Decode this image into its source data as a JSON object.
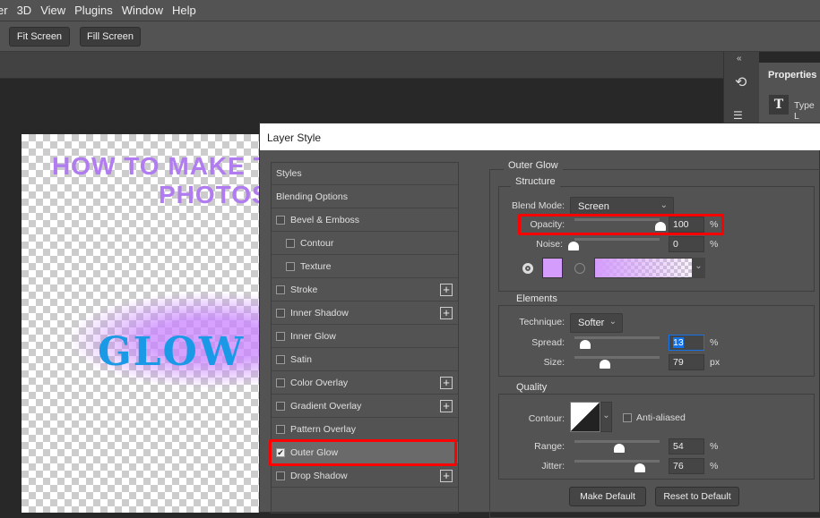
{
  "menu": [
    "er",
    "3D",
    "View",
    "Plugins",
    "Window",
    "Help"
  ],
  "toolbar": {
    "fit_screen": "Fit Screen",
    "fill_screen": "Fill Screen"
  },
  "properties": {
    "title": "Properties",
    "type_layer": "Type L"
  },
  "canvas": {
    "line1": "HOW TO MAKE T",
    "line2": "PHOTOS",
    "glow_text": "GLOW T"
  },
  "dialog": {
    "title": "Layer Style",
    "styles": [
      {
        "label": "Styles",
        "check": false,
        "has_checkbox": false,
        "plus": false
      },
      {
        "label": "Blending Options",
        "has_checkbox": false,
        "plus": false
      },
      {
        "label": "Bevel & Emboss",
        "has_checkbox": true,
        "checked": false,
        "plus": false
      },
      {
        "label": "Contour",
        "has_checkbox": true,
        "checked": false,
        "plus": false,
        "indent": true
      },
      {
        "label": "Texture",
        "has_checkbox": true,
        "checked": false,
        "plus": false,
        "indent": true
      },
      {
        "label": "Stroke",
        "has_checkbox": true,
        "checked": false,
        "plus": true
      },
      {
        "label": "Inner Shadow",
        "has_checkbox": true,
        "checked": false,
        "plus": true
      },
      {
        "label": "Inner Glow",
        "has_checkbox": true,
        "checked": false,
        "plus": false
      },
      {
        "label": "Satin",
        "has_checkbox": true,
        "checked": false,
        "plus": false
      },
      {
        "label": "Color Overlay",
        "has_checkbox": true,
        "checked": false,
        "plus": true
      },
      {
        "label": "Gradient Overlay",
        "has_checkbox": true,
        "checked": false,
        "plus": true
      },
      {
        "label": "Pattern Overlay",
        "has_checkbox": true,
        "checked": false,
        "plus": false
      },
      {
        "label": "Outer Glow",
        "has_checkbox": true,
        "checked": true,
        "plus": false,
        "selected": true
      },
      {
        "label": "Drop Shadow",
        "has_checkbox": true,
        "checked": false,
        "plus": true
      }
    ],
    "outer_glow": {
      "title": "Outer Glow",
      "structure": {
        "title": "Structure",
        "blend_mode_label": "Blend Mode:",
        "blend_mode": "Screen",
        "opacity_label": "Opacity:",
        "opacity": "100",
        "noise_label": "Noise:",
        "noise": "0",
        "pct": "%",
        "glow_color": "#d49cfc"
      },
      "elements": {
        "title": "Elements",
        "technique_label": "Technique:",
        "technique": "Softer",
        "spread_label": "Spread:",
        "spread": "13",
        "size_label": "Size:",
        "size": "79",
        "pct": "%",
        "px": "px"
      },
      "quality": {
        "title": "Quality",
        "contour_label": "Contour:",
        "anti_aliased": "Anti-aliased",
        "range_label": "Range:",
        "range": "54",
        "jitter_label": "Jitter:",
        "jitter": "76",
        "pct": "%"
      },
      "make_default": "Make Default",
      "reset_default": "Reset to Default"
    }
  },
  "colors": {
    "highlight": "#ff0000",
    "accent": "#1473e6"
  }
}
